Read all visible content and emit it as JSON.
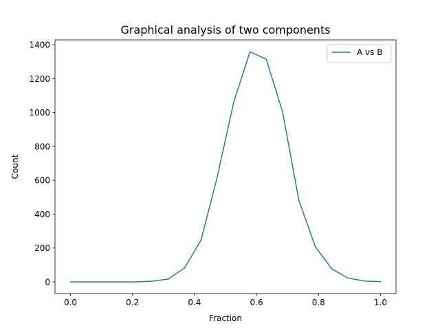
{
  "chart_data": {
    "type": "line",
    "title": "Graphical analysis of two components",
    "xlabel": "Fraction",
    "ylabel": "Count",
    "xlim": [
      -0.05,
      1.05
    ],
    "ylim": [
      -69,
      1429
    ],
    "xticks": [
      0.0,
      0.2,
      0.4,
      0.6,
      0.8,
      1.0
    ],
    "xtick_labels": [
      "0.0",
      "0.2",
      "0.4",
      "0.6",
      "0.8",
      "1.0"
    ],
    "yticks": [
      0,
      200,
      400,
      600,
      800,
      1000,
      1200,
      1400
    ],
    "ytick_labels": [
      "0",
      "200",
      "400",
      "600",
      "800",
      "1000",
      "1200",
      "1400"
    ],
    "grid": false,
    "legend_position": "top-right",
    "series": [
      {
        "name": "A vs B",
        "color": "#1f77b4",
        "x": [
          0.0,
          0.0526,
          0.1053,
          0.1579,
          0.2105,
          0.2632,
          0.3158,
          0.3684,
          0.4211,
          0.4737,
          0.5263,
          0.5789,
          0.6316,
          0.6842,
          0.7368,
          0.7895,
          0.8421,
          0.8947,
          0.9474,
          1.0
        ],
        "y": [
          0,
          0,
          0,
          0,
          0,
          4,
          17,
          83,
          247,
          622,
          1060,
          1359,
          1314,
          1003,
          481,
          209,
          78,
          23,
          5,
          1
        ]
      }
    ]
  }
}
